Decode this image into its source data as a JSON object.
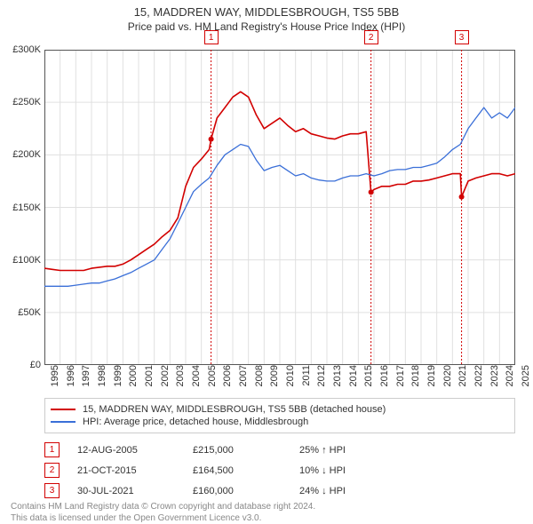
{
  "title": "15, MADDREN WAY, MIDDLESBROUGH, TS5 5BB",
  "subtitle": "Price paid vs. HM Land Registry's House Price Index (HPI)",
  "chart": {
    "type": "line",
    "background_color": "#ffffff",
    "grid_color": "#e0e0e0",
    "axis_color": "#555555",
    "y": {
      "min": 0,
      "max": 300000,
      "step": 50000,
      "ticks": [
        "£0",
        "£50K",
        "£100K",
        "£150K",
        "£200K",
        "£250K",
        "£300K"
      ]
    },
    "x": {
      "min": 1995,
      "max": 2025,
      "step": 1,
      "ticks": [
        "1995",
        "1996",
        "1997",
        "1998",
        "1999",
        "2000",
        "2001",
        "2002",
        "2003",
        "2004",
        "2005",
        "2006",
        "2007",
        "2008",
        "2009",
        "2010",
        "2011",
        "2012",
        "2013",
        "2014",
        "2015",
        "2016",
        "2017",
        "2018",
        "2019",
        "2020",
        "2021",
        "2022",
        "2023",
        "2024",
        "2025"
      ]
    },
    "series": [
      {
        "name": "property-price",
        "label": "15, MADDREN WAY, MIDDLESBROUGH, TS5 5BB (detached house)",
        "color": "#d20000",
        "width": 1.6,
        "points": [
          [
            1995.0,
            92000
          ],
          [
            1995.5,
            91000
          ],
          [
            1996.0,
            90000
          ],
          [
            1996.5,
            90000
          ],
          [
            1997.0,
            90000
          ],
          [
            1997.5,
            90000
          ],
          [
            1998.0,
            92000
          ],
          [
            1998.5,
            93000
          ],
          [
            1999.0,
            94000
          ],
          [
            1999.5,
            94000
          ],
          [
            2000.0,
            96000
          ],
          [
            2000.5,
            100000
          ],
          [
            2001.0,
            105000
          ],
          [
            2001.5,
            110000
          ],
          [
            2002.0,
            115000
          ],
          [
            2002.5,
            122000
          ],
          [
            2003.0,
            128000
          ],
          [
            2003.5,
            140000
          ],
          [
            2004.0,
            170000
          ],
          [
            2004.5,
            188000
          ],
          [
            2005.0,
            196000
          ],
          [
            2005.5,
            205000
          ],
          [
            2005.62,
            215000
          ],
          [
            2006.0,
            235000
          ],
          [
            2006.5,
            245000
          ],
          [
            2007.0,
            255000
          ],
          [
            2007.5,
            260000
          ],
          [
            2008.0,
            255000
          ],
          [
            2008.5,
            238000
          ],
          [
            2009.0,
            225000
          ],
          [
            2009.5,
            230000
          ],
          [
            2010.0,
            235000
          ],
          [
            2010.5,
            228000
          ],
          [
            2011.0,
            222000
          ],
          [
            2011.5,
            225000
          ],
          [
            2012.0,
            220000
          ],
          [
            2012.5,
            218000
          ],
          [
            2013.0,
            216000
          ],
          [
            2013.5,
            215000
          ],
          [
            2014.0,
            218000
          ],
          [
            2014.5,
            220000
          ],
          [
            2015.0,
            220000
          ],
          [
            2015.5,
            222000
          ],
          [
            2015.81,
            164500
          ],
          [
            2016.0,
            167000
          ],
          [
            2016.5,
            170000
          ],
          [
            2017.0,
            170000
          ],
          [
            2017.5,
            172000
          ],
          [
            2018.0,
            172000
          ],
          [
            2018.5,
            175000
          ],
          [
            2019.0,
            175000
          ],
          [
            2019.5,
            176000
          ],
          [
            2020.0,
            178000
          ],
          [
            2020.5,
            180000
          ],
          [
            2021.0,
            182000
          ],
          [
            2021.5,
            182000
          ],
          [
            2021.58,
            160000
          ],
          [
            2022.0,
            175000
          ],
          [
            2022.5,
            178000
          ],
          [
            2023.0,
            180000
          ],
          [
            2023.5,
            182000
          ],
          [
            2024.0,
            182000
          ],
          [
            2024.5,
            180000
          ],
          [
            2025.0,
            182000
          ]
        ]
      },
      {
        "name": "hpi",
        "label": "HPI: Average price, detached house, Middlesbrough",
        "color": "#3a6fd8",
        "width": 1.3,
        "points": [
          [
            1995.0,
            75000
          ],
          [
            1995.5,
            75000
          ],
          [
            1996.0,
            75000
          ],
          [
            1996.5,
            75000
          ],
          [
            1997.0,
            76000
          ],
          [
            1997.5,
            77000
          ],
          [
            1998.0,
            78000
          ],
          [
            1998.5,
            78000
          ],
          [
            1999.0,
            80000
          ],
          [
            1999.5,
            82000
          ],
          [
            2000.0,
            85000
          ],
          [
            2000.5,
            88000
          ],
          [
            2001.0,
            92000
          ],
          [
            2001.5,
            96000
          ],
          [
            2002.0,
            100000
          ],
          [
            2002.5,
            110000
          ],
          [
            2003.0,
            120000
          ],
          [
            2003.5,
            135000
          ],
          [
            2004.0,
            150000
          ],
          [
            2004.5,
            165000
          ],
          [
            2005.0,
            172000
          ],
          [
            2005.5,
            178000
          ],
          [
            2006.0,
            190000
          ],
          [
            2006.5,
            200000
          ],
          [
            2007.0,
            205000
          ],
          [
            2007.5,
            210000
          ],
          [
            2008.0,
            208000
          ],
          [
            2008.5,
            195000
          ],
          [
            2009.0,
            185000
          ],
          [
            2009.5,
            188000
          ],
          [
            2010.0,
            190000
          ],
          [
            2010.5,
            185000
          ],
          [
            2011.0,
            180000
          ],
          [
            2011.5,
            182000
          ],
          [
            2012.0,
            178000
          ],
          [
            2012.5,
            176000
          ],
          [
            2013.0,
            175000
          ],
          [
            2013.5,
            175000
          ],
          [
            2014.0,
            178000
          ],
          [
            2014.5,
            180000
          ],
          [
            2015.0,
            180000
          ],
          [
            2015.5,
            182000
          ],
          [
            2016.0,
            180000
          ],
          [
            2016.5,
            182000
          ],
          [
            2017.0,
            185000
          ],
          [
            2017.5,
            186000
          ],
          [
            2018.0,
            186000
          ],
          [
            2018.5,
            188000
          ],
          [
            2019.0,
            188000
          ],
          [
            2019.5,
            190000
          ],
          [
            2020.0,
            192000
          ],
          [
            2020.5,
            198000
          ],
          [
            2021.0,
            205000
          ],
          [
            2021.5,
            210000
          ],
          [
            2022.0,
            225000
          ],
          [
            2022.5,
            235000
          ],
          [
            2023.0,
            245000
          ],
          [
            2023.5,
            235000
          ],
          [
            2024.0,
            240000
          ],
          [
            2024.5,
            235000
          ],
          [
            2025.0,
            245000
          ]
        ]
      }
    ],
    "events": [
      {
        "marker": "1",
        "year": 2005.62,
        "price": 215000
      },
      {
        "marker": "2",
        "year": 2015.81,
        "price": 164500
      },
      {
        "marker": "3",
        "year": 2021.58,
        "price": 160000
      }
    ],
    "event_line_color": "#d20000",
    "event_line_dash": "2,2",
    "marker_dot_color": "#d20000",
    "marker_dot_radius": 3
  },
  "transactions": [
    {
      "marker": "1",
      "date": "12-AUG-2005",
      "price": "£215,000",
      "hpi_delta": "25% ↑ HPI"
    },
    {
      "marker": "2",
      "date": "21-OCT-2015",
      "price": "£164,500",
      "hpi_delta": "10% ↓ HPI"
    },
    {
      "marker": "3",
      "date": "30-JUL-2021",
      "price": "£160,000",
      "hpi_delta": "24% ↓ HPI"
    }
  ],
  "attribution": {
    "line1": "Contains HM Land Registry data © Crown copyright and database right 2024.",
    "line2": "This data is licensed under the Open Government Licence v3.0."
  }
}
